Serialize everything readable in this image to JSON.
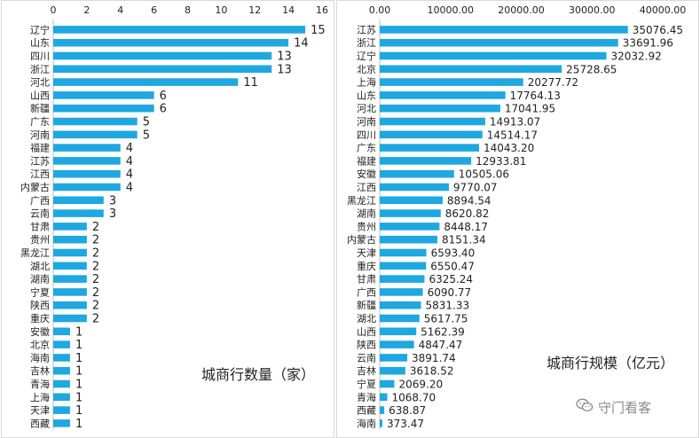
{
  "charts": [
    {
      "key": "city_bank_count",
      "title": "城商行数量（家）",
      "colors": {
        "bar": "#1fa7e0",
        "grid": "#d9d9d9",
        "text": "#222222"
      }
    },
    {
      "key": "city_bank_scale",
      "title": "城商行规模（亿元）",
      "colors": {
        "bar": "#1fa7e0",
        "grid": "#d9d9d9",
        "text": "#222222"
      }
    }
  ],
  "watermark": {
    "text": "守门看客",
    "icon": "wechat-icon"
  },
  "chart_data": [
    {
      "type": "bar",
      "orientation": "horizontal",
      "title": "城商行数量（家）",
      "xlim": [
        0,
        16
      ],
      "x_ticks": [
        "0",
        "2",
        "4",
        "6",
        "8",
        "10",
        "12",
        "14",
        "16"
      ],
      "x_axis_position": "top",
      "grid": false,
      "categories": [
        "辽宁",
        "山东",
        "四川",
        "浙江",
        "河北",
        "山西",
        "新疆",
        "广东",
        "河南",
        "福建",
        "江苏",
        "江西",
        "内蒙古",
        "广西",
        "云南",
        "甘肃",
        "贵州",
        "黑龙江",
        "湖北",
        "湖南",
        "宁夏",
        "陕西",
        "重庆",
        "安徽",
        "北京",
        "海南",
        "吉林",
        "青海",
        "上海",
        "天津",
        "西藏"
      ],
      "values": [
        15,
        14,
        13,
        13,
        11,
        6,
        6,
        5,
        5,
        4,
        4,
        4,
        4,
        3,
        3,
        2,
        2,
        2,
        2,
        2,
        2,
        2,
        2,
        1,
        1,
        1,
        1,
        1,
        1,
        1,
        1
      ],
      "value_labels": [
        "15",
        "14",
        "13",
        "13",
        "11",
        "6",
        "6",
        "5",
        "5",
        "4",
        "4",
        "4",
        "4",
        "3",
        "3",
        "2",
        "2",
        "2",
        "2",
        "2",
        "2",
        "2",
        "2",
        "1",
        "1",
        "1",
        "1",
        "1",
        "1",
        "1",
        "1"
      ]
    },
    {
      "type": "bar",
      "orientation": "horizontal",
      "title": "城商行规模（亿元）",
      "xlim": [
        0,
        40000
      ],
      "x_ticks": [
        "0.00",
        "10000.00",
        "20000.00",
        "30000.00",
        "40000.00"
      ],
      "x_axis_position": "top",
      "grid": false,
      "categories": [
        "江苏",
        "浙江",
        "辽宁",
        "北京",
        "上海",
        "山东",
        "河北",
        "河南",
        "四川",
        "广东",
        "福建",
        "安徽",
        "江西",
        "黑龙江",
        "湖南",
        "贵州",
        "内蒙古",
        "天津",
        "重庆",
        "甘肃",
        "广西",
        "新疆",
        "湖北",
        "山西",
        "陕西",
        "云南",
        "吉林",
        "宁夏",
        "青海",
        "西藏",
        "海南"
      ],
      "values": [
        35076.45,
        33691.96,
        32032.92,
        25728.65,
        20277.72,
        17764.13,
        17041.95,
        14913.07,
        14514.17,
        14043.2,
        12933.81,
        10505.06,
        9770.07,
        8894.54,
        8620.82,
        8448.17,
        8151.34,
        6593.4,
        6550.47,
        6325.24,
        6090.77,
        5831.33,
        5617.75,
        5162.39,
        4847.47,
        3891.74,
        3618.52,
        2069.2,
        1068.7,
        638.87,
        373.47
      ],
      "value_labels": [
        "35076.45",
        "33691.96",
        "32032.92",
        "25728.65",
        "20277.72",
        "17764.13",
        "17041.95",
        "14913.07",
        "14514.17",
        "14043.20",
        "12933.81",
        "10505.06",
        "9770.07",
        "8894.54",
        "8620.82",
        "8448.17",
        "8151.34",
        "6593.40",
        "6550.47",
        "6325.24",
        "6090.77",
        "5831.33",
        "5617.75",
        "5162.39",
        "4847.47",
        "3891.74",
        "3618.52",
        "2069.20",
        "1068.70",
        "638.87",
        "373.47"
      ]
    }
  ]
}
